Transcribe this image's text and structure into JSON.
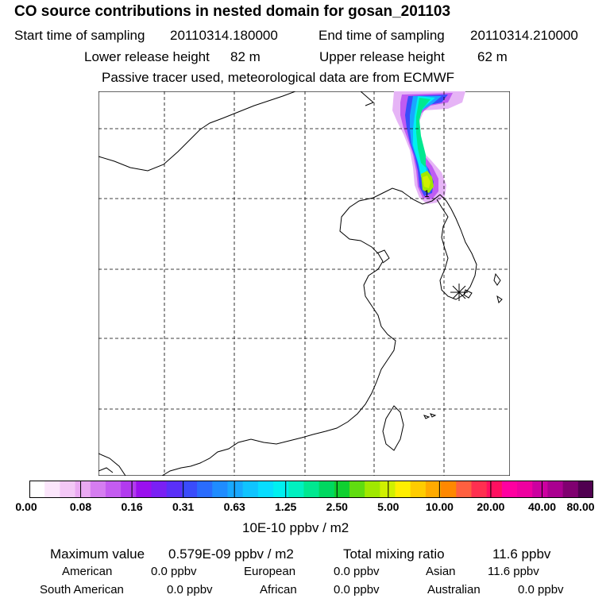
{
  "header": {
    "title": "CO  source contributions in nested domain for gosan_201103",
    "start_label": "Start time of sampling",
    "start_value": "20110314.180000",
    "end_label": "End time of sampling",
    "end_value": "20110314.210000",
    "lower_label": "Lower release height",
    "lower_value": "82 m",
    "upper_label": "Upper release height",
    "upper_value": "62 m",
    "note": "Passive tracer used, meteorological data are from ECMWF"
  },
  "map": {
    "receptor_marker": "asterisk-icon",
    "contour_label": "1"
  },
  "colorbar": {
    "labels": [
      "0.00",
      "0.08",
      "0.16",
      "0.31",
      "0.63",
      "1.25",
      "2.50",
      "5.00",
      "10.00",
      "20.00",
      "40.00",
      "80.00"
    ],
    "colors": [
      "#ffffff",
      "#fbe6fb",
      "#f3c8f6",
      "#eaaaf2",
      "#d57df0",
      "#c45cf0",
      "#b23aef",
      "#9a10ee",
      "#7a20f4",
      "#5a30f8",
      "#3a4cfb",
      "#2a6cfd",
      "#1f8cff",
      "#18a8ff",
      "#10c4ff",
      "#08ddff",
      "#00f0f0",
      "#00f0c0",
      "#00e890",
      "#00d860",
      "#10d030",
      "#60dc10",
      "#a0e800",
      "#d0f000",
      "#ffee00",
      "#ffcc00",
      "#ffaa00",
      "#ff8800",
      "#ff6040",
      "#ff3050",
      "#ff1060",
      "#ff00a0",
      "#ee00a0",
      "#cc00a0",
      "#aa0090",
      "#800070",
      "#500050"
    ],
    "unit": "10E-10 ppbv / m2"
  },
  "stats": {
    "max_label": "Maximum value",
    "max_value": "0.579E-09 ppbv / m2",
    "total_label": "Total mixing ratio",
    "total_value": "11.6 ppbv",
    "regions": [
      {
        "name": "American",
        "value": "0.0 ppbv"
      },
      {
        "name": "European",
        "value": "0.0 ppbv"
      },
      {
        "name": "Asian",
        "value": "11.6 ppbv"
      },
      {
        "name": "South American",
        "value": "0.0 ppbv"
      },
      {
        "name": "African",
        "value": "0.0 ppbv"
      },
      {
        "name": "Australian",
        "value": "0.0 ppbv"
      }
    ]
  }
}
